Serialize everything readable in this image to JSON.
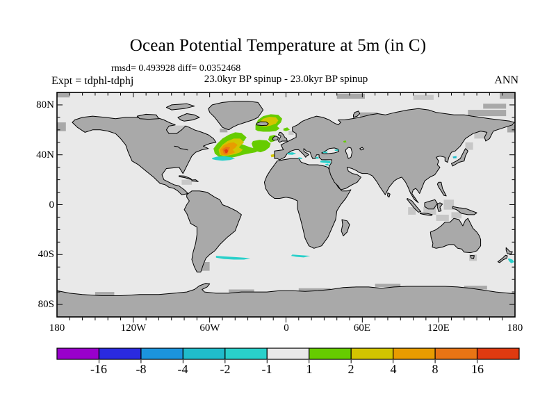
{
  "header": {
    "title": "Ocean Potential Temperature at 5m (in C)",
    "stats_line": "rmsd= 0.493928 diff= 0.0352468",
    "expt_label": "Expt = tdphl-tdphj",
    "run_label": "23.0kyr BP spinup - 23.0kyr BP spinup",
    "season_label": "ANN"
  },
  "chart_data": {
    "type": "heatmap",
    "subtype": "global-map-anomaly",
    "projection": "equirectangular",
    "title": "Ocean Potential Temperature at 5m (in C)",
    "units": "C",
    "rmsd": 0.493928,
    "diff": 0.0352468,
    "experiment": "tdphl-tdphj",
    "comparison": "23.0kyr BP spinup - 23.0kyr BP spinup",
    "season": "ANN",
    "lon_axis": {
      "range": [
        -180,
        180
      ],
      "minor_step_deg": 10,
      "ticks": [
        {
          "label": "180",
          "lon": -180
        },
        {
          "label": "120W",
          "lon": -120
        },
        {
          "label": "60W",
          "lon": -60
        },
        {
          "label": "0",
          "lon": 0
        },
        {
          "label": "60E",
          "lon": 60
        },
        {
          "label": "120E",
          "lon": 120
        },
        {
          "label": "180",
          "lon": 180
        }
      ]
    },
    "lat_axis": {
      "range": [
        -90,
        90
      ],
      "minor_step_deg": 10,
      "ticks": [
        {
          "label": "80N",
          "lat": 80
        },
        {
          "label": "40N",
          "lat": 40
        },
        {
          "label": "0",
          "lat": 0
        },
        {
          "label": "40S",
          "lat": -40
        },
        {
          "label": "80S",
          "lat": -80
        }
      ]
    },
    "colorbar": {
      "boundary_labels": [
        "-16",
        "-8",
        "-4",
        "-2",
        "-1",
        "1",
        "2",
        "4",
        "8",
        "16"
      ],
      "colors": [
        "#9900CC",
        "#2A2AE0",
        "#1B94DD",
        "#20BCCB",
        "#29D0CA",
        "#E8E8E8",
        "#66CC00",
        "#D2C500",
        "#E89C00",
        "#E87414",
        "#E03A10"
      ]
    },
    "map_colors": {
      "ocean": "#E9E9E9",
      "land": "#A9A9A9",
      "partial_cell": "#C7C7C7",
      "coastline": "#000000"
    },
    "anomaly_regions": [
      {
        "name": "north-atlantic-warm-fringe",
        "level": "+1 to +2",
        "color": 6,
        "layer": "under",
        "points": [
          [
            -56,
            41
          ],
          [
            -57,
            45
          ],
          [
            -54,
            49
          ],
          [
            -50,
            53
          ],
          [
            -45,
            56
          ],
          [
            -40,
            58
          ],
          [
            -35,
            57.5
          ],
          [
            -31,
            54
          ],
          [
            -33,
            51
          ],
          [
            -36,
            49
          ],
          [
            -32,
            47.5
          ],
          [
            -28,
            46
          ],
          [
            -24,
            45
          ],
          [
            -21,
            43.5
          ],
          [
            -24,
            42
          ],
          [
            -29,
            41
          ],
          [
            -34,
            40
          ],
          [
            -39,
            38.5
          ],
          [
            -44,
            37.5
          ],
          [
            -49,
            37.5
          ],
          [
            -53,
            38.5
          ]
        ]
      },
      {
        "name": "biscay-warm-patch",
        "level": "+1 to +2",
        "color": 6,
        "layer": "under",
        "points": [
          [
            -26,
            51
          ],
          [
            -21,
            52
          ],
          [
            -15,
            51.5
          ],
          [
            -12,
            49
          ],
          [
            -13,
            46
          ],
          [
            -16,
            43.5
          ],
          [
            -20,
            42
          ],
          [
            -24,
            43
          ],
          [
            -26,
            46
          ],
          [
            -27,
            49
          ]
        ]
      },
      {
        "name": "iceland-warm-ring",
        "level": "+1 to +2",
        "color": 6,
        "layer": "under",
        "points": [
          [
            -24,
            60
          ],
          [
            -24,
            64
          ],
          [
            -22,
            68
          ],
          [
            -18,
            71
          ],
          [
            -12,
            72.5
          ],
          [
            -6,
            72
          ],
          [
            -3,
            69
          ],
          [
            -4,
            66
          ],
          [
            -7,
            63
          ],
          [
            -5,
            61
          ],
          [
            -8,
            59
          ],
          [
            -13,
            58.5
          ],
          [
            -18,
            58.5
          ],
          [
            -22,
            59
          ]
        ]
      },
      {
        "name": "uk-west-warm-patch",
        "level": "+1 to +2",
        "color": 6,
        "layer": "under",
        "points": [
          [
            -13,
            55
          ],
          [
            -9,
            56
          ],
          [
            -7,
            54
          ],
          [
            -9,
            51
          ],
          [
            -12,
            50
          ],
          [
            -14,
            52
          ]
        ]
      },
      {
        "name": "norwegian-sea-warm-speck",
        "level": "+1 to +2",
        "color": 6,
        "layer": "under",
        "points": [
          [
            -2,
            61
          ],
          [
            1,
            62
          ],
          [
            3,
            60
          ],
          [
            0,
            59
          ],
          [
            -2,
            59.5
          ]
        ]
      },
      {
        "name": "caspian-north-warm-speck",
        "level": "+1 to +2",
        "color": 6,
        "layer": "over",
        "points": [
          [
            45,
            51
          ],
          [
            47,
            51.5
          ],
          [
            47.5,
            50
          ],
          [
            45.5,
            49.8
          ]
        ]
      },
      {
        "name": "north-atlantic-yellow",
        "level": "+2 to +4",
        "color": 7,
        "layer": "under",
        "points": [
          [
            -52,
            40
          ],
          [
            -53,
            44
          ],
          [
            -50,
            48
          ],
          [
            -46,
            51
          ],
          [
            -41,
            53
          ],
          [
            -36,
            53
          ],
          [
            -33,
            50
          ],
          [
            -35,
            48
          ],
          [
            -37,
            46
          ],
          [
            -34,
            44
          ],
          [
            -36,
            42
          ],
          [
            -40,
            40.5
          ],
          [
            -45,
            39.5
          ],
          [
            -49,
            39
          ]
        ]
      },
      {
        "name": "iceland-yellow",
        "level": "+2 to +4",
        "color": 7,
        "layer": "under",
        "points": [
          [
            -20,
            63
          ],
          [
            -21,
            66
          ],
          [
            -18,
            69
          ],
          [
            -13,
            70.5
          ],
          [
            -8,
            70
          ],
          [
            -6,
            67.5
          ],
          [
            -8,
            65
          ],
          [
            -12,
            63.5
          ],
          [
            -16,
            62.5
          ]
        ]
      },
      {
        "name": "portugal-yellow-speck",
        "level": "+2 to +4",
        "color": 7,
        "layer": "under",
        "points": [
          [
            -12,
            40
          ],
          [
            -9.5,
            40.5
          ],
          [
            -9,
            38.5
          ],
          [
            -11.5,
            38
          ]
        ]
      },
      {
        "name": "gulf-stream-orange",
        "level": "+4 to +8",
        "color": 8,
        "layer": "under",
        "points": [
          [
            -51,
            40
          ],
          [
            -52,
            44
          ],
          [
            -49,
            47.5
          ],
          [
            -45,
            49.5
          ],
          [
            -41,
            50
          ],
          [
            -38,
            48
          ],
          [
            -40,
            45.5
          ],
          [
            -42,
            44
          ],
          [
            -40,
            42
          ],
          [
            -43,
            40.5
          ],
          [
            -47,
            39.5
          ]
        ]
      },
      {
        "name": "gulf-stream-core",
        "level": "+8 to +16",
        "color": 9,
        "layer": "under",
        "points": [
          [
            -49,
            41
          ],
          [
            -50,
            44.5
          ],
          [
            -47,
            46.5
          ],
          [
            -44,
            46
          ],
          [
            -45,
            43.5
          ],
          [
            -46,
            41
          ],
          [
            -47,
            40.3
          ]
        ]
      },
      {
        "name": "gulf-stream-max",
        "level": "> +16",
        "color": 10,
        "layer": "under",
        "points": [
          [
            -47.5,
            41.5
          ],
          [
            -48.5,
            43.8
          ],
          [
            -46.5,
            44.8
          ],
          [
            -45.5,
            43
          ],
          [
            -46.3,
            41.5
          ]
        ]
      },
      {
        "name": "sargasso-cool-band",
        "level": "-2 to -1",
        "color": 4,
        "layer": "under",
        "points": [
          [
            -58,
            37.5
          ],
          [
            -54,
            38.5
          ],
          [
            -48,
            38.8
          ],
          [
            -43,
            38
          ],
          [
            -40,
            37
          ],
          [
            -44,
            35.8
          ],
          [
            -50,
            35.2
          ],
          [
            -55,
            35.8
          ],
          [
            -58,
            36.5
          ]
        ]
      },
      {
        "name": "south-atlantic-cool-streak",
        "level": "-2 to -1",
        "color": 4,
        "layer": "under",
        "points": [
          [
            -55,
            -41
          ],
          [
            -48,
            -41.5
          ],
          [
            -40,
            -42
          ],
          [
            -33,
            -42.5
          ],
          [
            -28,
            -43
          ],
          [
            -33,
            -44
          ],
          [
            -41,
            -44
          ],
          [
            -49,
            -43.5
          ],
          [
            -55,
            -42.5
          ]
        ]
      },
      {
        "name": "south-africa-cool-streak",
        "level": "-2 to -1",
        "color": 4,
        "layer": "under",
        "points": [
          [
            5,
            -40
          ],
          [
            12,
            -40.5
          ],
          [
            19,
            -41
          ],
          [
            14,
            -42.3
          ],
          [
            8,
            -41.8
          ],
          [
            4,
            -41
          ]
        ]
      },
      {
        "name": "new-zealand-cool-patch",
        "level": "-2 to -1",
        "color": 4,
        "layer": "over",
        "points": [
          [
            175,
            -43
          ],
          [
            178,
            -44
          ],
          [
            179.5,
            -46
          ],
          [
            177,
            -47
          ],
          [
            175.5,
            -45.5
          ],
          [
            174.5,
            -43.8
          ]
        ]
      },
      {
        "name": "west-med-cool",
        "level": "-2 to -1",
        "color": 4,
        "layer": "over",
        "points": [
          [
            1,
            41.5
          ],
          [
            5,
            42
          ],
          [
            8,
            41
          ],
          [
            5,
            40
          ],
          [
            1.5,
            40.3
          ]
        ]
      },
      {
        "name": "tyrrhenian-cool-speck",
        "level": "-2 to -1",
        "color": 4,
        "layer": "over",
        "points": [
          [
            10,
            38
          ],
          [
            13,
            37.5
          ],
          [
            12,
            36.5
          ],
          [
            9.5,
            37
          ]
        ]
      },
      {
        "name": "aegean-cool-speck",
        "level": "-2 to -1",
        "color": 4,
        "layer": "over",
        "points": [
          [
            23,
            38
          ],
          [
            25,
            38.5
          ],
          [
            26,
            37
          ],
          [
            24,
            36.8
          ]
        ]
      },
      {
        "name": "east-med-cool",
        "level": "-2 to -1",
        "color": 4,
        "layer": "over",
        "points": [
          [
            27,
            34
          ],
          [
            31,
            33.5
          ],
          [
            35,
            33
          ],
          [
            35,
            35
          ],
          [
            31,
            35.5
          ],
          [
            27,
            35.2
          ]
        ]
      },
      {
        "name": "levant-cool-speck",
        "level": "-2 to -1",
        "color": 4,
        "layer": "over",
        "points": [
          [
            31,
            31.5
          ],
          [
            34,
            31.3
          ],
          [
            33,
            32.8
          ],
          [
            31,
            32.5
          ]
        ]
      },
      {
        "name": "black-sea-cool-speck",
        "level": "-2 to -1",
        "color": 4,
        "layer": "over",
        "points": [
          [
            29,
            42.5
          ],
          [
            33,
            42.5
          ],
          [
            32,
            41.3
          ],
          [
            29,
            41.5
          ]
        ]
      },
      {
        "name": "black-sea-east-speck",
        "level": "-2 to -1",
        "color": 4,
        "layer": "over",
        "points": [
          [
            38,
            44
          ],
          [
            41,
            44.5
          ],
          [
            41,
            43
          ],
          [
            38.5,
            43.2
          ]
        ]
      },
      {
        "name": "japan-sea-cool-speck",
        "level": "-4 to -2",
        "color": 3,
        "layer": "over",
        "points": [
          [
            131,
            38.5
          ],
          [
            134,
            39
          ],
          [
            134,
            37.3
          ],
          [
            131.5,
            37.2
          ]
        ]
      }
    ]
  }
}
